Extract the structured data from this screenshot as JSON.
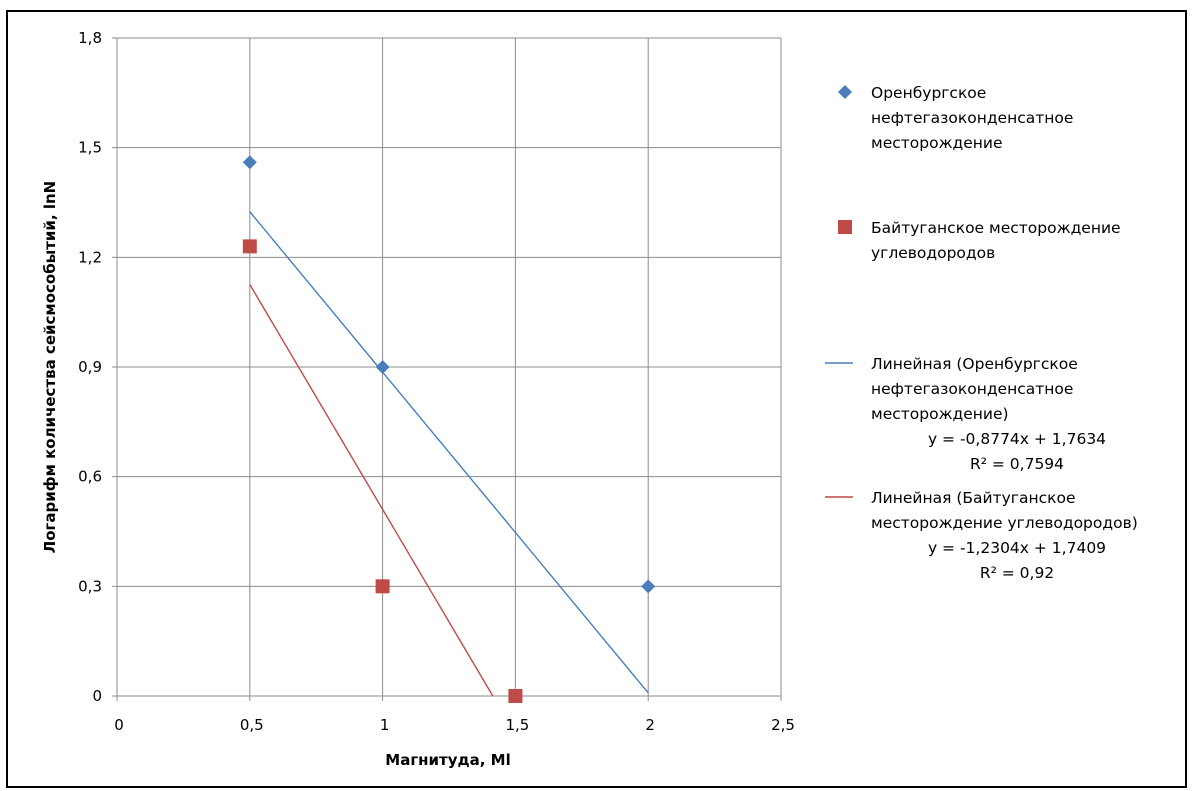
{
  "chart_data": {
    "type": "scatter",
    "title": "",
    "xlabel": "Магнитуда,  Ml",
    "ylabel": "Логарифм количества сейсмособытий,  lnN",
    "xlim": [
      0,
      2.5
    ],
    "ylim": [
      0,
      1.8
    ],
    "x_ticks": [
      "0",
      "0,5",
      "1",
      "1,5",
      "2",
      "2,5"
    ],
    "y_ticks": [
      "0",
      "0,3",
      "0,6",
      "0,9",
      "1,2",
      "1,5",
      "1,8"
    ],
    "grid": true,
    "legend_position": "right",
    "series": [
      {
        "name": "Оренбургское нефтегазоконденсатное месторождение",
        "marker": "diamond",
        "color": "#4A7EBB",
        "points": [
          {
            "x": 0.5,
            "y": 1.46
          },
          {
            "x": 1,
            "y": 0.9
          },
          {
            "x": 2,
            "y": 0.3
          }
        ]
      },
      {
        "name": "Байтуганское месторождение углеводородов",
        "marker": "square",
        "color": "#BE4B48",
        "points": [
          {
            "x": 0.5,
            "y": 1.23
          },
          {
            "x": 1,
            "y": 0.3
          },
          {
            "x": 1.5,
            "y": 0
          }
        ]
      }
    ],
    "trendlines": [
      {
        "name": "Линейная (Оренбургское нефтегазоконденсатное месторождение)",
        "color": "#4A7EBB",
        "slope": -0.8774,
        "intercept": 1.7634,
        "x_range": [
          0.5,
          2
        ],
        "equation": "y = -0,8774x + 1,7634",
        "r2": "R² = 0,7594"
      },
      {
        "name": "Линейная (Байтуганское месторождение  углеводородов)",
        "color": "#BE4B48",
        "slope": -1.2304,
        "intercept": 1.7409,
        "x_range": [
          0.5,
          1.415
        ],
        "equation": "y = -1,2304x + 1,7409",
        "r2": "R² = 0,92"
      }
    ],
    "legend": [
      {
        "type": "marker",
        "series": 0,
        "lines": [
          "Оренбургское",
          "нефтегазоконденсатное",
          "месторождение"
        ]
      },
      {
        "type": "marker",
        "series": 1,
        "lines": [
          "Байтуганское месторождение",
          "углеводородов"
        ]
      },
      {
        "type": "line",
        "trend": 0,
        "lines": [
          "Линейная (Оренбургское",
          "нефтегазоконденсатное",
          "месторождение)"
        ],
        "eq_lines": [
          "y = -0,8774x + 1,7634",
          "R² = 0,7594"
        ]
      },
      {
        "type": "line",
        "trend": 1,
        "lines": [
          "Линейная (Байтуганское",
          "месторождение  углеводородов)"
        ],
        "eq_lines": [
          "y = -1,2304x + 1,7409",
          "R² = 0,92"
        ]
      }
    ]
  }
}
